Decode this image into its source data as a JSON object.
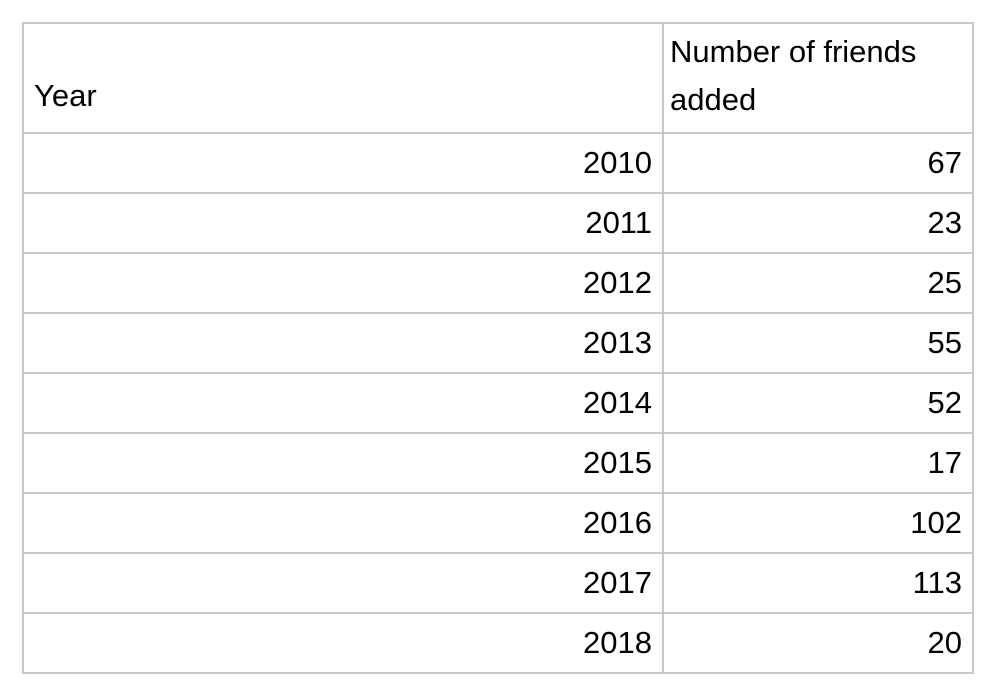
{
  "table": {
    "headers": [
      "Year",
      "Number of friends added"
    ],
    "rows": [
      [
        "2010",
        "67"
      ],
      [
        "2011",
        "23"
      ],
      [
        "2012",
        "25"
      ],
      [
        "2013",
        "55"
      ],
      [
        "2014",
        "52"
      ],
      [
        "2015",
        "17"
      ],
      [
        "2016",
        "102"
      ],
      [
        "2017",
        "113"
      ],
      [
        "2018",
        "20"
      ]
    ]
  },
  "colors": {
    "grid": "#c8c8c8",
    "text": "#000000",
    "background": "#ffffff"
  }
}
